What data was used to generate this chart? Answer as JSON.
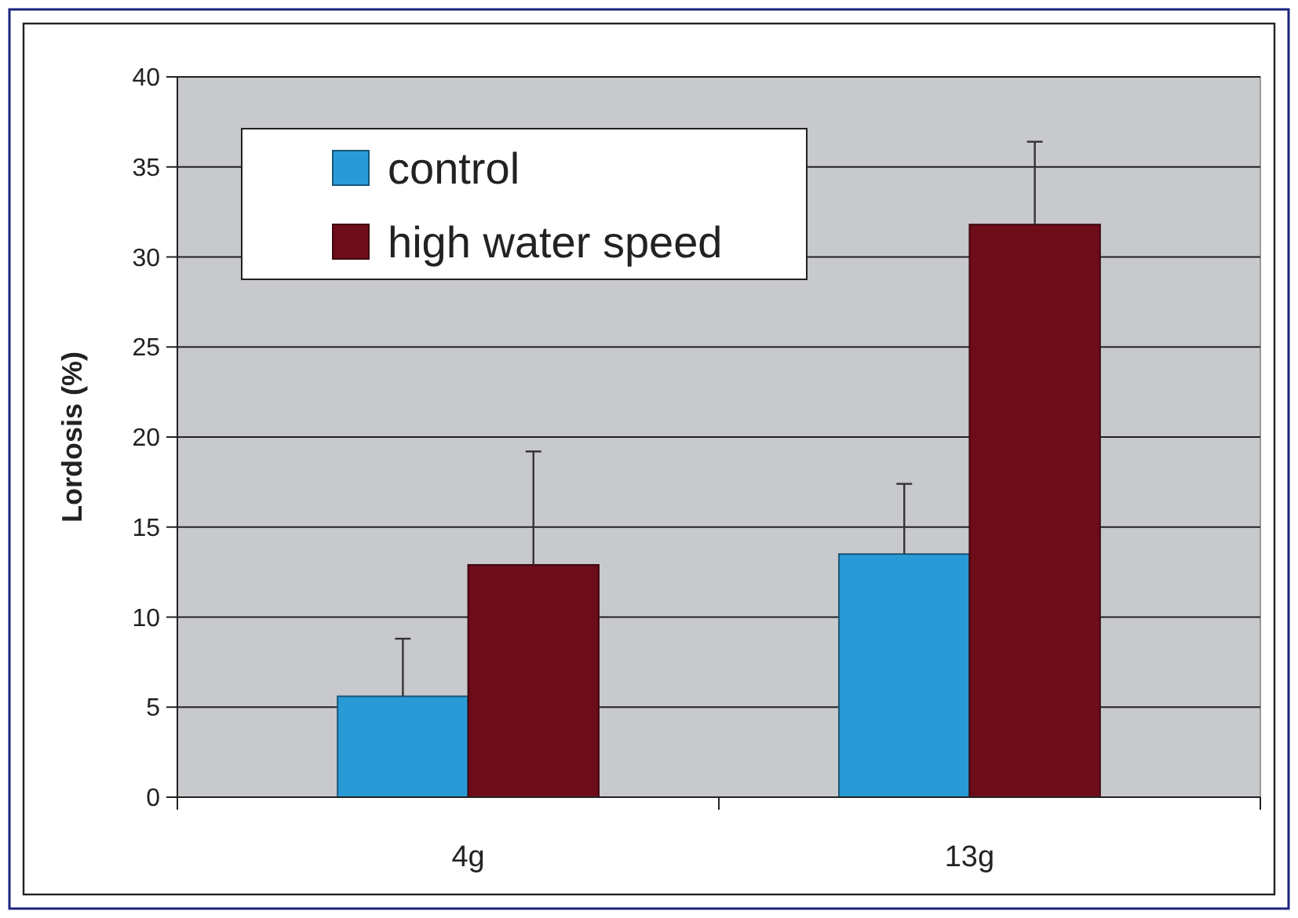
{
  "chart_data": {
    "type": "bar",
    "ylabel": "Lordosis (%)",
    "categories": [
      "4g",
      "13g"
    ],
    "series": [
      {
        "name": "control",
        "color": "#2a9ad6",
        "values": [
          5.6,
          13.5
        ],
        "errors": [
          [
            5.6,
            8.8
          ],
          [
            13.5,
            17.4
          ]
        ]
      },
      {
        "name": "high water speed",
        "color": "#6e0c1a",
        "values": [
          12.9,
          31.8
        ],
        "errors": [
          [
            12.9,
            19.2
          ],
          [
            31.8,
            36.4
          ]
        ]
      }
    ],
    "ylim": [
      0,
      40
    ],
    "yticks": [
      0,
      5,
      10,
      15,
      20,
      25,
      30,
      35,
      40
    ],
    "grid": "y",
    "legend": "top left"
  }
}
